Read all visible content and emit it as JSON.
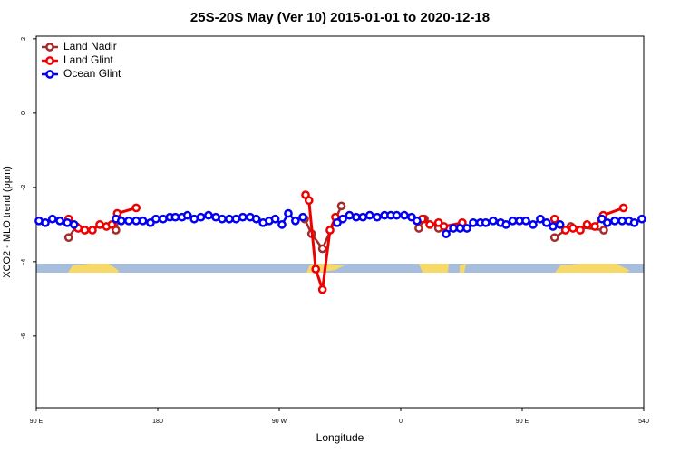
{
  "chart_data": {
    "type": "line",
    "title": "25S-20S May (Ver 10)   2015-01-01 to 2020-12-18",
    "x_label": "Longitude",
    "y_label": "XCO2 - MLO trend (ppm)",
    "xlim": [
      90,
      540
    ],
    "ylim": [
      -7.93,
      2.07
    ],
    "xticks": [
      {
        "value": 90,
        "label": "90 E"
      },
      180,
      {
        "value": 270,
        "label": "90 W"
      },
      {
        "value": 360,
        "label": "0"
      },
      {
        "value": 450,
        "label": "90 E"
      },
      540
    ],
    "yticks": [
      -6,
      -4,
      -2,
      0,
      2
    ],
    "legend": "top-left",
    "series": [
      {
        "name": "Land Nadir",
        "color": "#a52a2a",
        "x": [
          114,
          119.5,
          null,
          149,
          151,
          null,
          288.8,
          294,
          302,
          316,
          null,
          373.4,
          377.5,
          388,
          null,
          474,
          486,
          510.4
        ],
        "values": [
          -3.35,
          -3.05,
          null,
          -3.15,
          -2.85,
          null,
          -2.85,
          -3.25,
          -3.65,
          -2.5,
          null,
          -3.1,
          -2.85,
          -3.1,
          null,
          -3.35,
          -3.05,
          -3.15
        ]
      },
      {
        "name": "Land Glint",
        "color": "#ee0000",
        "x": [
          114,
          121,
          126,
          131.6,
          137,
          142,
          146,
          150,
          164,
          null,
          289.5,
          292,
          297,
          302,
          307.6,
          311.6,
          null,
          376,
          381.5,
          388,
          392,
          405.6,
          null,
          474,
          482,
          487.6,
          493,
          498,
          503.7,
          510,
          525
        ],
        "values": [
          -2.85,
          -3.1,
          -3.15,
          -3.15,
          -3.0,
          -3.05,
          -3.0,
          -2.7,
          -2.55,
          null,
          -2.2,
          -2.35,
          -4.2,
          -4.75,
          -3.15,
          -2.8,
          null,
          -2.85,
          -3.0,
          -2.95,
          -3.05,
          -2.95,
          null,
          -2.85,
          -3.15,
          -3.1,
          -3.15,
          -3.0,
          -3.05,
          -2.75,
          -2.55
        ]
      },
      {
        "name": "Ocean Glint",
        "color": "#0000ee",
        "x": [
          92,
          96.7,
          102,
          107.5,
          113,
          118,
          null,
          149,
          153,
          158.5,
          164,
          169,
          174.6,
          178.6,
          184,
          189,
          193,
          198,
          202,
          207,
          212,
          217.6,
          223,
          227.7,
          233,
          238,
          243,
          248.5,
          253,
          258,
          262.6,
          267,
          272,
          276.7,
          282,
          287.5,
          null,
          313,
          317,
          322,
          327,
          332,
          337,
          342.5,
          348,
          352.6,
          357,
          362.7,
          368,
          372,
          null,
          393.6,
          399,
          404,
          409,
          413.7,
          419,
          423,
          428.5,
          434,
          438,
          443,
          448,
          452.7,
          458,
          463.4,
          468,
          472.8,
          478,
          null,
          509,
          513,
          518.5,
          524,
          529,
          533,
          538.6
        ],
        "values": [
          -2.9,
          -2.95,
          -2.85,
          -2.9,
          -2.95,
          -3.0,
          null,
          -2.85,
          -2.9,
          -2.9,
          -2.9,
          -2.9,
          -2.95,
          -2.85,
          -2.85,
          -2.8,
          -2.8,
          -2.8,
          -2.75,
          -2.85,
          -2.8,
          -2.75,
          -2.8,
          -2.85,
          -2.85,
          -2.85,
          -2.8,
          -2.8,
          -2.85,
          -2.95,
          -2.9,
          -2.85,
          -3.0,
          -2.7,
          -2.9,
          -2.8,
          null,
          -2.95,
          -2.85,
          -2.75,
          -2.8,
          -2.8,
          -2.75,
          -2.8,
          -2.75,
          -2.75,
          -2.75,
          -2.75,
          -2.8,
          -2.9,
          null,
          -3.25,
          -3.1,
          -3.1,
          -3.1,
          -2.95,
          -2.95,
          -2.95,
          -2.9,
          -2.95,
          -3.0,
          -2.9,
          -2.9,
          -2.9,
          -3.0,
          -2.85,
          -2.95,
          -3.05,
          -3.0,
          null,
          -2.85,
          -2.95,
          -2.9,
          -2.9,
          -2.9,
          -2.95,
          -2.85
        ]
      }
    ]
  }
}
